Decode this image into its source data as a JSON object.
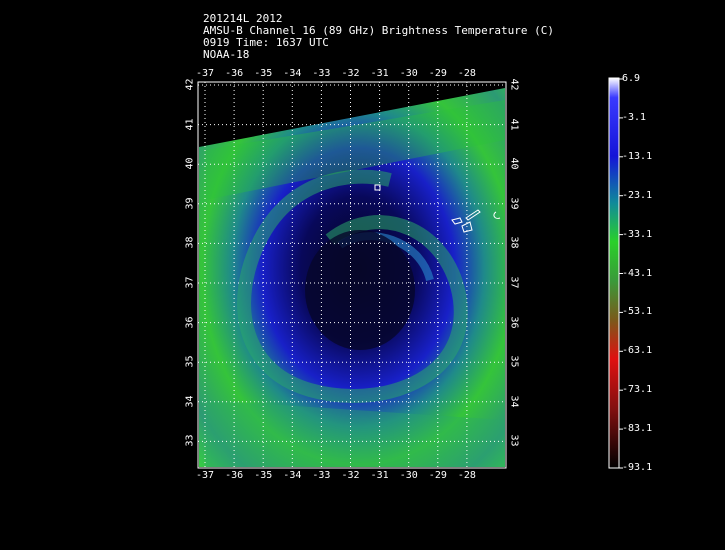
{
  "header": {
    "line1": "201214L 2012",
    "line2": "AMSU-B Channel 16 (89 GHz) Brightness Temperature (C)",
    "line3": "0919 Time: 1637 UTC",
    "line4": "NOAA-18"
  },
  "map": {
    "lon_labels": [
      "-37",
      "-36",
      "-35",
      "-34",
      "-33",
      "-32",
      "-31",
      "-30",
      "-29",
      "-28"
    ],
    "lat_labels": [
      "42",
      "41",
      "40",
      "39",
      "38",
      "37",
      "36",
      "35",
      "34",
      "33"
    ]
  },
  "colorbar": {
    "labels": [
      "6.9",
      "-3.1",
      "-13.1",
      "-23.1",
      "-33.1",
      "-43.1",
      "-53.1",
      "-63.1",
      "-73.1",
      "-83.1",
      "-93.1"
    ],
    "stops": [
      "#ffffff",
      "#3a3aff",
      "#1414d8",
      "#0a2aa8",
      "#1f9a8a",
      "#3ad63a",
      "#4aa84a",
      "#8a6a2a",
      "#d81414",
      "#801010",
      "#000000"
    ]
  },
  "colors": {
    "land_outline": "#ffffff",
    "grid": "#ffffff"
  }
}
